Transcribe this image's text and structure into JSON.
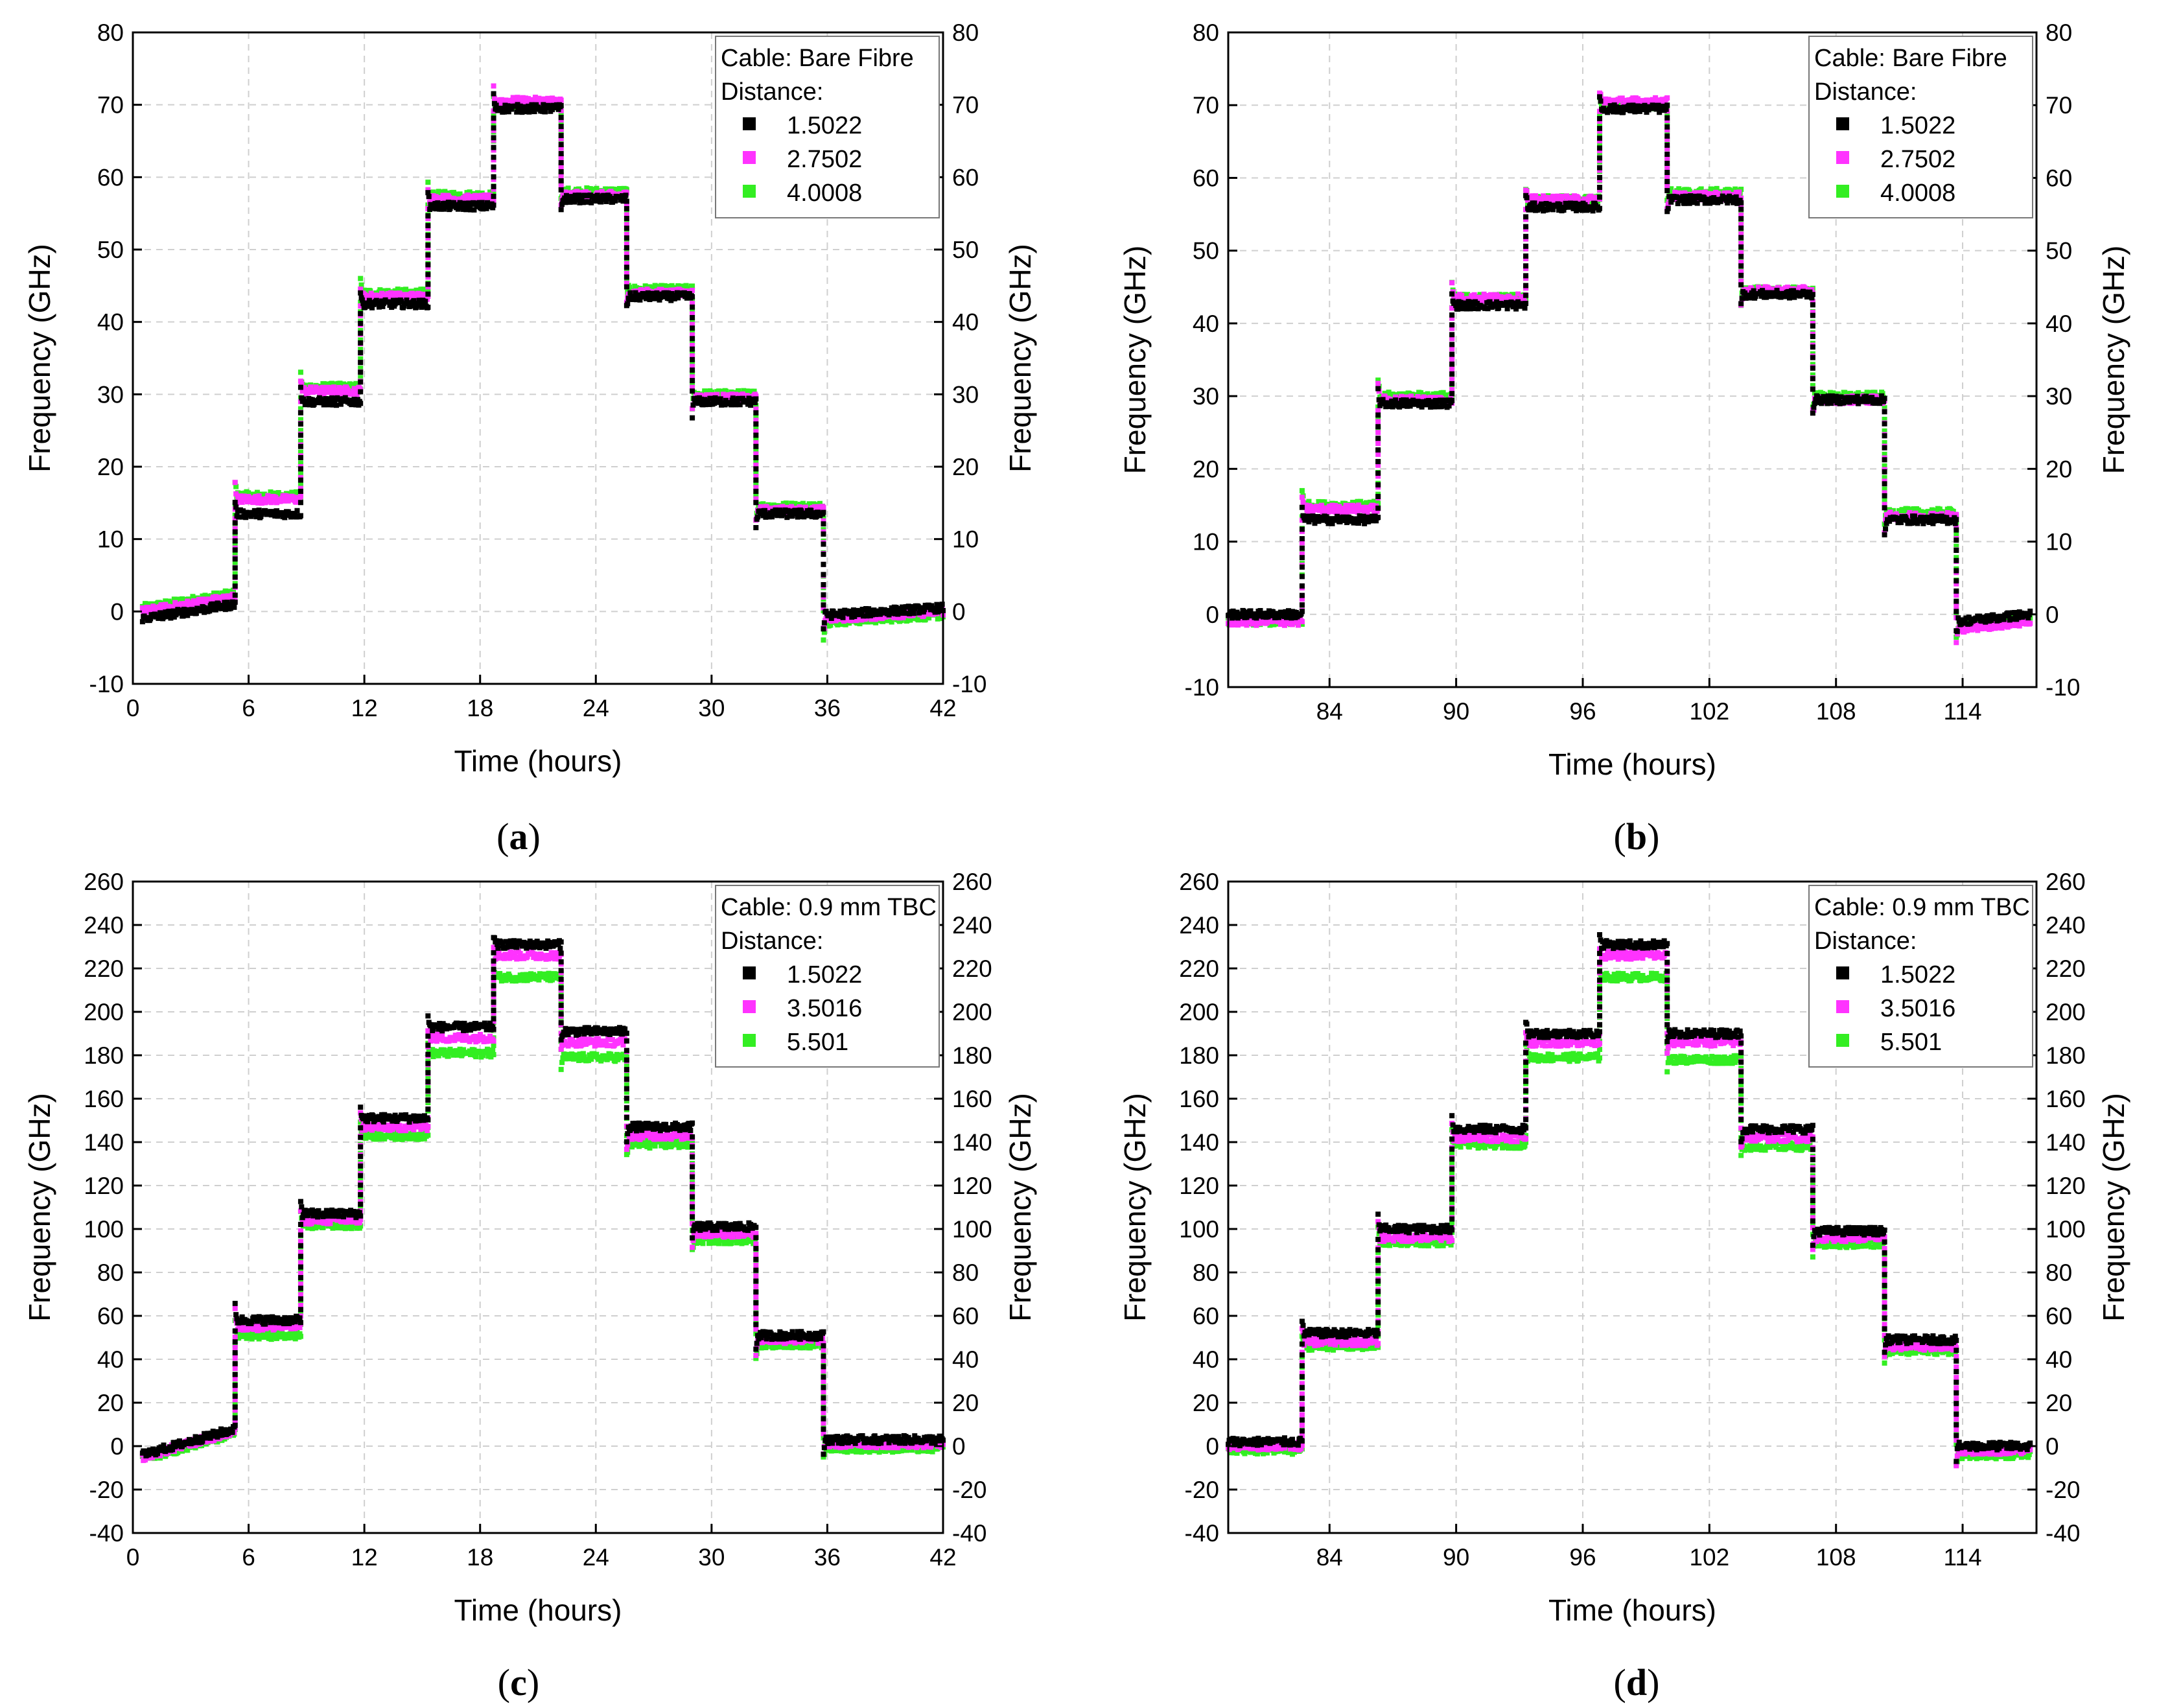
{
  "colors": {
    "series1": "#000000",
    "series2": "#ff33ff",
    "series3": "#33ee22",
    "grid": "#cfcfcf",
    "axis": "#000000"
  },
  "chart_data": [
    {
      "panel": "a",
      "caption": "a",
      "type": "scatter",
      "title": "",
      "xlabel": "Time (hours)",
      "ylabel": "Frequency (GHz)",
      "ylabel_right": "Frequency (GHz)",
      "xlim": [
        0,
        42
      ],
      "ylim": [
        -10,
        80
      ],
      "xticks": [
        0,
        6,
        12,
        18,
        24,
        30,
        36,
        42
      ],
      "yticks": [
        -10,
        0,
        10,
        20,
        30,
        40,
        50,
        60,
        70,
        80
      ],
      "legend_title": "Cable: Bare Fibre",
      "legend_subtitle": "Distance:",
      "legend_position": "top-right",
      "steps": [
        {
          "start": 0.5,
          "end": 5.3,
          "v": [
            -1,
            0,
            0.5
          ],
          "slope": 2
        },
        {
          "start": 5.3,
          "end": 8.7,
          "v": [
            13.5,
            15.5,
            16
          ],
          "slope": 0
        },
        {
          "start": 8.7,
          "end": 11.8,
          "v": [
            29,
            30.5,
            31
          ],
          "slope": 0
        },
        {
          "start": 11.8,
          "end": 15.3,
          "v": [
            42.5,
            43.5,
            44
          ],
          "slope": 0
        },
        {
          "start": 15.3,
          "end": 18.7,
          "v": [
            56,
            57,
            57.5
          ],
          "slope": 0
        },
        {
          "start": 18.7,
          "end": 22.2,
          "v": [
            69.5,
            70.5,
            70
          ],
          "slope": 0
        },
        {
          "start": 22.2,
          "end": 25.6,
          "v": [
            57,
            57.5,
            58
          ],
          "slope": 0
        },
        {
          "start": 25.6,
          "end": 29.0,
          "v": [
            43.5,
            44,
            44.5
          ],
          "slope": 0
        },
        {
          "start": 29.0,
          "end": 32.3,
          "v": [
            29,
            29.5,
            30
          ],
          "slope": 0
        },
        {
          "start": 32.3,
          "end": 35.8,
          "v": [
            13.5,
            14,
            14.5
          ],
          "slope": 0
        },
        {
          "start": 35.8,
          "end": 42.0,
          "v": [
            -0.5,
            -1,
            -1.5
          ],
          "slope": 1
        }
      ],
      "series": [
        {
          "name": "1.5022"
        },
        {
          "name": "2.7502"
        },
        {
          "name": "4.0008"
        }
      ]
    },
    {
      "panel": "b",
      "caption": "b",
      "type": "scatter",
      "title": "",
      "xlabel": "Time (hours)",
      "ylabel": "Frequency (GHz)",
      "ylabel_right": "Frequency (GHz)",
      "xlim": [
        79.2,
        117.5
      ],
      "ylim": [
        -10,
        80
      ],
      "xticks": [
        84,
        90,
        96,
        102,
        108,
        114
      ],
      "yticks": [
        -10,
        0,
        10,
        20,
        30,
        40,
        50,
        60,
        70,
        80
      ],
      "legend_title": "Cable: Bare Fibre",
      "legend_subtitle": "Distance:",
      "legend_position": "top-right",
      "steps": [
        {
          "start": 79.2,
          "end": 82.7,
          "v": [
            0,
            -1,
            -1
          ],
          "slope": 0
        },
        {
          "start": 82.7,
          "end": 86.3,
          "v": [
            13,
            14.5,
            15
          ],
          "slope": 0
        },
        {
          "start": 86.3,
          "end": 89.8,
          "v": [
            29,
            29.5,
            30
          ],
          "slope": 0
        },
        {
          "start": 89.8,
          "end": 93.3,
          "v": [
            42.5,
            43.5,
            43.5
          ],
          "slope": 0
        },
        {
          "start": 93.3,
          "end": 96.8,
          "v": [
            56,
            57,
            57
          ],
          "slope": 0
        },
        {
          "start": 96.8,
          "end": 100.0,
          "v": [
            69.5,
            70.5,
            70
          ],
          "slope": 0
        },
        {
          "start": 100.0,
          "end": 103.5,
          "v": [
            57,
            57.5,
            58
          ],
          "slope": 0
        },
        {
          "start": 103.5,
          "end": 106.9,
          "v": [
            44,
            44.5,
            44.5
          ],
          "slope": 0
        },
        {
          "start": 106.9,
          "end": 110.3,
          "v": [
            29.5,
            29.5,
            30
          ],
          "slope": 0
        },
        {
          "start": 110.3,
          "end": 113.7,
          "v": [
            13,
            13.5,
            14
          ],
          "slope": 0
        },
        {
          "start": 113.7,
          "end": 117.2,
          "v": [
            -1,
            -2,
            -1.5
          ],
          "slope": 1
        }
      ],
      "series": [
        {
          "name": "1.5022"
        },
        {
          "name": "2.7502"
        },
        {
          "name": "4.0008"
        }
      ]
    },
    {
      "panel": "c",
      "caption": "c",
      "type": "scatter",
      "title": "",
      "xlabel": "Time (hours)",
      "ylabel": "Frequency (GHz)",
      "ylabel_right": "Frequency (GHz)",
      "xlim": [
        0,
        42
      ],
      "ylim": [
        -40,
        260
      ],
      "xticks": [
        0,
        6,
        12,
        18,
        24,
        30,
        36,
        42
      ],
      "yticks": [
        -40,
        -20,
        0,
        20,
        40,
        60,
        80,
        100,
        120,
        140,
        160,
        180,
        200,
        220,
        240,
        260
      ],
      "legend_title": "Cable: 0.9 mm TBC",
      "legend_subtitle": "Distance:",
      "legend_position": "top-right",
      "steps": [
        {
          "start": 0.5,
          "end": 5.3,
          "v": [
            -4,
            -5,
            -6
          ],
          "slope": 12
        },
        {
          "start": 5.3,
          "end": 8.7,
          "v": [
            58,
            55,
            51
          ],
          "slope": 0
        },
        {
          "start": 8.7,
          "end": 11.8,
          "v": [
            107,
            104,
            102
          ],
          "slope": 0
        },
        {
          "start": 11.8,
          "end": 15.3,
          "v": [
            151,
            147,
            143
          ],
          "slope": 0
        },
        {
          "start": 15.3,
          "end": 18.7,
          "v": [
            193,
            188,
            181
          ],
          "slope": 0
        },
        {
          "start": 18.7,
          "end": 22.2,
          "v": [
            231,
            226,
            216
          ],
          "slope": 0
        },
        {
          "start": 22.2,
          "end": 25.6,
          "v": [
            191,
            186,
            179
          ],
          "slope": 0
        },
        {
          "start": 25.6,
          "end": 29.0,
          "v": [
            147,
            143,
            139
          ],
          "slope": 0
        },
        {
          "start": 29.0,
          "end": 32.3,
          "v": [
            101,
            98,
            95
          ],
          "slope": 0
        },
        {
          "start": 32.3,
          "end": 35.8,
          "v": [
            51,
            49,
            47
          ],
          "slope": 0
        },
        {
          "start": 35.8,
          "end": 42.0,
          "v": [
            3,
            1,
            -1
          ],
          "slope": 0
        }
      ],
      "series": [
        {
          "name": "1.5022"
        },
        {
          "name": "3.5016"
        },
        {
          "name": "5.501"
        }
      ]
    },
    {
      "panel": "d",
      "caption": "d",
      "type": "scatter",
      "title": "",
      "xlabel": "Time (hours)",
      "ylabel": "Frequency (GHz)",
      "ylabel_right": "Frequency (GHz)",
      "xlim": [
        79.2,
        117.5
      ],
      "ylim": [
        -40,
        260
      ],
      "xticks": [
        84,
        90,
        96,
        102,
        108,
        114
      ],
      "yticks": [
        -40,
        -20,
        0,
        20,
        40,
        60,
        80,
        100,
        120,
        140,
        160,
        180,
        200,
        220,
        240,
        260
      ],
      "legend_title": "Cable: 0.9 mm TBC",
      "legend_subtitle": "Distance:",
      "legend_position": "top-right",
      "steps": [
        {
          "start": 79.2,
          "end": 82.7,
          "v": [
            2,
            0,
            -2
          ],
          "slope": 0
        },
        {
          "start": 82.7,
          "end": 86.3,
          "v": [
            52,
            48,
            46
          ],
          "slope": 0
        },
        {
          "start": 86.3,
          "end": 89.8,
          "v": [
            100,
            96,
            94
          ],
          "slope": 0
        },
        {
          "start": 89.8,
          "end": 93.3,
          "v": [
            146,
            142,
            139
          ],
          "slope": 0
        },
        {
          "start": 93.3,
          "end": 96.8,
          "v": [
            190,
            186,
            179
          ],
          "slope": 0
        },
        {
          "start": 96.8,
          "end": 100.0,
          "v": [
            231,
            226,
            216
          ],
          "slope": 0
        },
        {
          "start": 100.0,
          "end": 103.5,
          "v": [
            190,
            186,
            178
          ],
          "slope": 0
        },
        {
          "start": 103.5,
          "end": 106.9,
          "v": [
            146,
            142,
            138
          ],
          "slope": 0
        },
        {
          "start": 106.9,
          "end": 110.3,
          "v": [
            99,
            96,
            93
          ],
          "slope": 0
        },
        {
          "start": 110.3,
          "end": 113.7,
          "v": [
            49,
            46,
            44
          ],
          "slope": 0
        },
        {
          "start": 113.7,
          "end": 117.2,
          "v": [
            0,
            -2,
            -4
          ],
          "slope": 0
        }
      ],
      "series": [
        {
          "name": "1.5022"
        },
        {
          "name": "3.5016"
        },
        {
          "name": "5.501"
        }
      ]
    }
  ]
}
